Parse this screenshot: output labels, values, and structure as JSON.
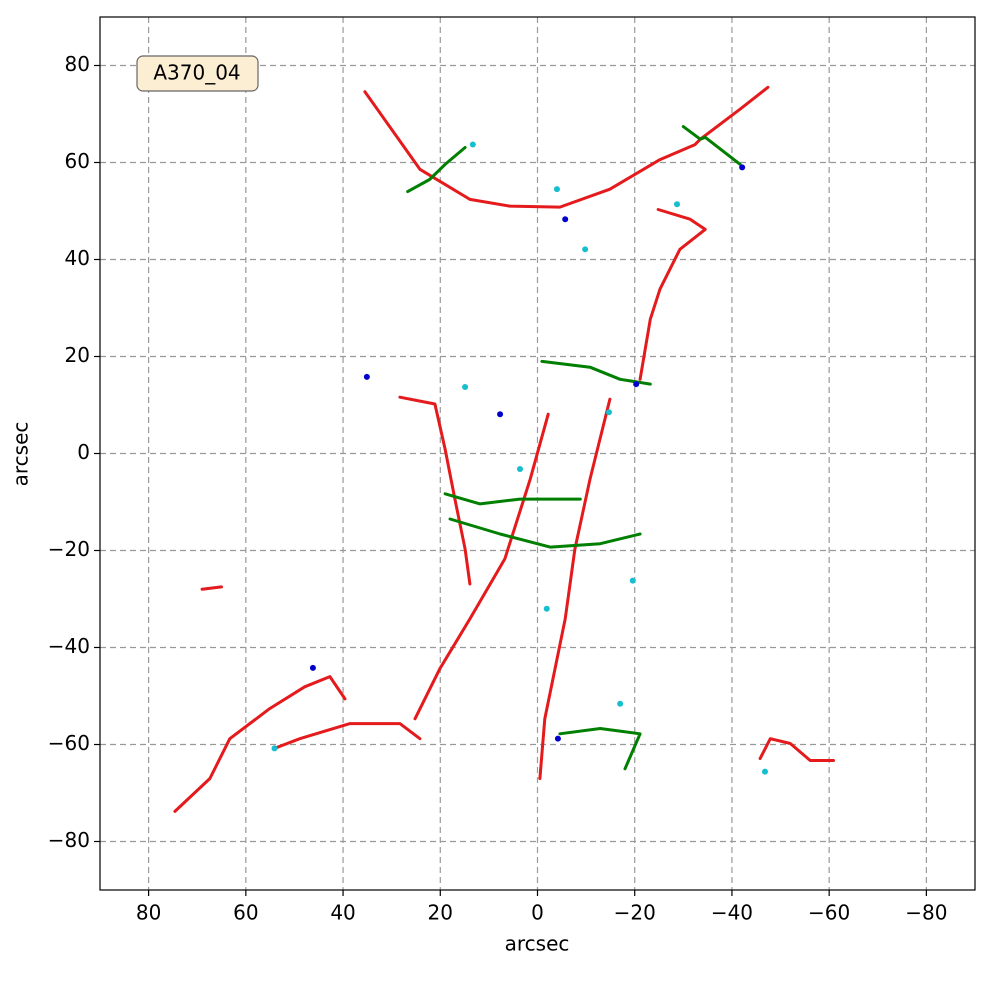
{
  "chart_data": {
    "type": "line",
    "annotation": "A370_04",
    "xlabel": "arcsec",
    "ylabel": "arcsec",
    "xlim": [
      90,
      -90
    ],
    "ylim": [
      -90,
      90
    ],
    "xticks": [
      80,
      60,
      40,
      20,
      0,
      {
        "value": -20,
        "label": "−20"
      },
      {
        "value": -40,
        "label": "−40"
      },
      {
        "value": -60,
        "label": "−60"
      },
      {
        "value": -80,
        "label": "−80"
      }
    ],
    "yticks": [
      {
        "value": -80,
        "label": "−80"
      },
      {
        "value": -60,
        "label": "−60"
      },
      {
        "value": -40,
        "label": "−40"
      },
      {
        "value": -20,
        "label": "−20"
      },
      0,
      20,
      40,
      60,
      80
    ],
    "grid": true,
    "series": [
      {
        "color": "#e41a1c",
        "x": [
          35.5,
          24.2,
          13.9,
          5.7,
          -4.6,
          -14.9,
          -25.2,
          -32.4,
          -33.5,
          -41.7,
          -47.4
        ],
        "y": [
          74.6,
          58.6,
          52.4,
          51,
          50.8,
          54.5,
          60.6,
          63.7,
          64.8,
          71,
          75.5
        ]
      },
      {
        "color": "#e41a1c",
        "x": [
          74.6,
          67.4,
          63.3,
          55.1,
          47.9,
          42.7,
          39.6
        ],
        "y": [
          -73.8,
          -67,
          -58.8,
          -52.6,
          -48.1,
          -46,
          -50.6
        ]
      },
      {
        "color": "#e41a1c",
        "x": [
          28.3,
          21.1,
          19,
          17,
          14.9,
          13.9
        ],
        "y": [
          11.6,
          10.2,
          0.9,
          -9.4,
          -19.7,
          -26.9
        ]
      },
      {
        "color": "#e41a1c",
        "x": [
          -2.2,
          1.5,
          6.7,
          13.9,
          20.1,
          25.2
        ],
        "y": [
          8.1,
          -5.3,
          -21.7,
          -34.1,
          -44.4,
          -54.7
        ]
      },
      {
        "color": "#e41a1c",
        "x": [
          -14.9,
          -10.8,
          -7.7,
          -5.7,
          -1.5,
          -0.5
        ],
        "y": [
          11.2,
          -5.3,
          -19.7,
          -34.1,
          -54.7,
          -67
        ]
      },
      {
        "color": "#e41a1c",
        "x": [
          54.1,
          48.9,
          38.6,
          28.3,
          24.2
        ],
        "y": [
          -60.8,
          -58.8,
          -55.7,
          -55.7,
          -58.8
        ]
      },
      {
        "color": "#e41a1c",
        "x": [
          -45.8,
          -47.9,
          -52,
          -56.1,
          -60.9
        ],
        "y": [
          -62.9,
          -58.8,
          -59.8,
          -63.3,
          -63.3
        ]
      },
      {
        "color": "#e41a1c",
        "x": [
          -24.8,
          -31.4,
          -34.5,
          -29.3,
          -25.2,
          -23.2,
          -21.1
        ],
        "y": [
          50.3,
          48.3,
          46.2,
          42.1,
          33.9,
          27.7,
          15.3
        ]
      },
      {
        "color": "#e41a1c",
        "x": [
          69,
          65
        ],
        "y": [
          -28,
          -27.5
        ]
      },
      {
        "color": "#007f00",
        "x": [
          19,
          11.8,
          3.6,
          -4.6,
          -8.8
        ],
        "y": [
          -8.3,
          -10.4,
          -9.4,
          -9.4,
          -9.4
        ]
      },
      {
        "color": "#007f00",
        "x": [
          18,
          7.7,
          -2.6,
          -12.9,
          -21.1
        ],
        "y": [
          -13.5,
          -16.6,
          -19.3,
          -18.6,
          -16.6
        ]
      },
      {
        "color": "#007f00",
        "x": [
          -0.9,
          -10.8,
          -17,
          -23.2
        ],
        "y": [
          19,
          17.8,
          15.3,
          14.3
        ]
      },
      {
        "color": "#007f00",
        "x": [
          -4.6,
          -12.9,
          -21.1,
          -18
        ],
        "y": [
          -57.8,
          -56.7,
          -57.8,
          -65
        ]
      },
      {
        "color": "#007f00",
        "x": [
          26.7,
          22.2,
          19,
          14.9
        ],
        "y": [
          54,
          56.5,
          59.6,
          63.1
        ]
      },
      {
        "color": "#007f00",
        "x": [
          -30,
          -33.5,
          -34.5,
          -41.7
        ],
        "y": [
          67.4,
          64.8,
          65.2,
          59.6
        ]
      },
      {
        "color": "#17becf",
        "markers_only": true,
        "x": [
          13.3,
          -4,
          -9.8,
          -28.7,
          14.9,
          -14.7,
          3.6,
          -19.6,
          -1.9,
          54.1,
          -46.8,
          -17
        ],
        "y": [
          63.7,
          54.5,
          42.1,
          51.4,
          13.7,
          8.5,
          -3.2,
          -26.2,
          -32,
          -60.8,
          -65.6,
          -51.6
        ]
      },
      {
        "color": "#0000cc",
        "markers_only": true,
        "x": [
          7.7,
          -5.7,
          -42.1,
          -20.3,
          -4.2,
          46.2,
          35.1
        ],
        "y": [
          8.1,
          48.3,
          59,
          14.3,
          -58.8,
          -44.2,
          15.8
        ]
      }
    ]
  }
}
